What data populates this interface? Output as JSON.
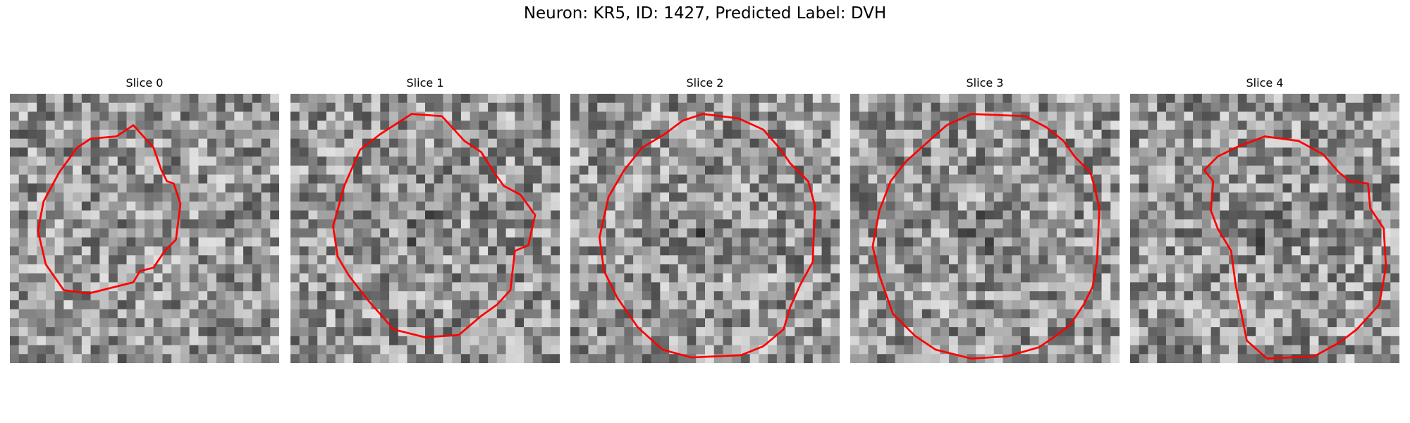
{
  "figure": {
    "title": "Neuron: KR5, ID: 1427, Predicted Label: DVH"
  },
  "panels": [
    {
      "title": "Slice 0",
      "outline_color": "#ff0000",
      "seed": 11,
      "contour": [
        [
          110,
          28
        ],
        [
          128,
          48
        ],
        [
          135,
          68
        ],
        [
          140,
          78
        ],
        [
          146,
          80
        ],
        [
          152,
          98
        ],
        [
          148,
          130
        ],
        [
          138,
          140
        ],
        [
          128,
          155
        ],
        [
          116,
          158
        ],
        [
          110,
          168
        ],
        [
          70,
          178
        ],
        [
          48,
          175
        ],
        [
          32,
          152
        ],
        [
          25,
          122
        ],
        [
          30,
          96
        ],
        [
          44,
          70
        ],
        [
          60,
          48
        ],
        [
          72,
          40
        ],
        [
          95,
          38
        ]
      ]
    },
    {
      "title": "Slice 1",
      "outline_color": "#ff0000",
      "seed": 23,
      "contour": [
        [
          135,
          20
        ],
        [
          155,
          42
        ],
        [
          170,
          52
        ],
        [
          180,
          68
        ],
        [
          190,
          82
        ],
        [
          205,
          90
        ],
        [
          218,
          108
        ],
        [
          212,
          135
        ],
        [
          200,
          140
        ],
        [
          196,
          175
        ],
        [
          184,
          188
        ],
        [
          170,
          198
        ],
        [
          150,
          215
        ],
        [
          120,
          217
        ],
        [
          92,
          210
        ],
        [
          70,
          185
        ],
        [
          52,
          162
        ],
        [
          42,
          145
        ],
        [
          38,
          118
        ],
        [
          48,
          82
        ],
        [
          62,
          50
        ],
        [
          80,
          36
        ],
        [
          108,
          18
        ]
      ]
    },
    {
      "title": "Slice 2",
      "outline_color": "#ff0000",
      "seed": 37,
      "contour": [
        [
          118,
          18
        ],
        [
          150,
          22
        ],
        [
          172,
          32
        ],
        [
          186,
          48
        ],
        [
          196,
          62
        ],
        [
          212,
          78
        ],
        [
          218,
          100
        ],
        [
          216,
          150
        ],
        [
          205,
          170
        ],
        [
          196,
          190
        ],
        [
          190,
          210
        ],
        [
          172,
          225
        ],
        [
          152,
          233
        ],
        [
          108,
          235
        ],
        [
          82,
          228
        ],
        [
          60,
          208
        ],
        [
          42,
          182
        ],
        [
          30,
          158
        ],
        [
          26,
          128
        ],
        [
          34,
          92
        ],
        [
          48,
          68
        ],
        [
          64,
          48
        ],
        [
          84,
          36
        ],
        [
          100,
          24
        ]
      ]
    },
    {
      "title": "Slice 3",
      "outline_color": "#ff0000",
      "seed": 51,
      "contour": [
        [
          108,
          18
        ],
        [
          156,
          20
        ],
        [
          175,
          30
        ],
        [
          190,
          42
        ],
        [
          200,
          56
        ],
        [
          214,
          70
        ],
        [
          218,
          84
        ],
        [
          222,
          102
        ],
        [
          220,
          148
        ],
        [
          216,
          172
        ],
        [
          208,
          188
        ],
        [
          196,
          206
        ],
        [
          180,
          218
        ],
        [
          168,
          226
        ],
        [
          140,
          234
        ],
        [
          108,
          236
        ],
        [
          76,
          228
        ],
        [
          58,
          216
        ],
        [
          38,
          196
        ],
        [
          26,
          162
        ],
        [
          20,
          136
        ],
        [
          26,
          104
        ],
        [
          36,
          78
        ],
        [
          50,
          60
        ],
        [
          68,
          44
        ],
        [
          86,
          28
        ]
      ]
    },
    {
      "title": "Slice 4",
      "outline_color": "#ff0000",
      "seed": 67,
      "contour": [
        [
          120,
          38
        ],
        [
          150,
          42
        ],
        [
          172,
          54
        ],
        [
          186,
          70
        ],
        [
          196,
          78
        ],
        [
          212,
          80
        ],
        [
          214,
          102
        ],
        [
          226,
          120
        ],
        [
          228,
          154
        ],
        [
          222,
          188
        ],
        [
          202,
          210
        ],
        [
          186,
          222
        ],
        [
          164,
          234
        ],
        [
          122,
          236
        ],
        [
          104,
          220
        ],
        [
          100,
          200
        ],
        [
          94,
          170
        ],
        [
          90,
          140
        ],
        [
          78,
          120
        ],
        [
          72,
          104
        ],
        [
          74,
          78
        ],
        [
          66,
          68
        ],
        [
          78,
          56
        ],
        [
          94,
          48
        ]
      ]
    }
  ]
}
